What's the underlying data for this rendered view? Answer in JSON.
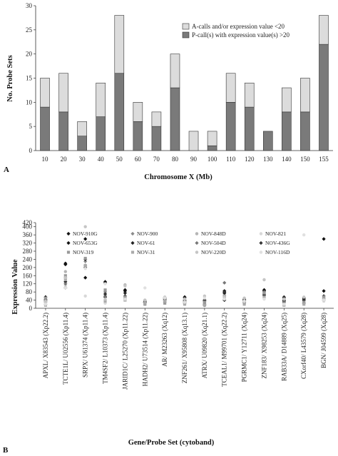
{
  "chart_data": [
    {
      "panel": "A",
      "type": "bar",
      "stacked": true,
      "categories": [
        "10",
        "20",
        "30",
        "40",
        "50",
        "60",
        "70",
        "80",
        "90",
        "100",
        "110",
        "120",
        "130",
        "140",
        "150",
        "155"
      ],
      "series": [
        {
          "name": "P-call(s) with expression value(s) >20",
          "values": [
            9,
            8,
            3,
            7,
            16,
            6,
            5,
            13,
            0,
            1,
            10,
            9,
            4,
            8,
            8,
            22
          ],
          "color": "#7a7a7a"
        },
        {
          "name": "A-calls and/or expression value <20",
          "values": [
            6,
            8,
            3,
            7,
            12,
            4,
            3,
            7,
            4,
            3,
            6,
            5,
            0,
            5,
            7,
            6
          ],
          "color": "#dcdcdc"
        }
      ],
      "xlabel": "Chromosome X (Mb)",
      "ylabel": "No. Probe Sets",
      "ylim": [
        0,
        30
      ],
      "yticks": [
        "0",
        "5",
        "10",
        "15",
        "20",
        "25",
        "30"
      ],
      "legend_position": "top-right",
      "grid": false
    },
    {
      "panel": "B",
      "type": "scatter",
      "categories": [
        "APXL/ X83543 (Xp22.2)",
        "TCTE1L/ U02556 (Xp11.4)",
        "SRPX/ U61374 (Xp11.4)",
        "TM4SF2/ L10373 (Xp11.4)",
        "JARID1C/ L25270 (Xp11.22)",
        "HADH2/ U73514 (Xp11.22)",
        "AR/ M23263 (Xq12)",
        "ZNF261/ X95808 (Xq13.1)",
        "ATRX/ U09820 (Xq21.1)",
        "TCEAL1/ M99701 (Xq22.2)",
        "PGRMC1/ Y12711 (Xq24)",
        "ZNF183/ X98253 (Xq24)",
        "RAB33A/ D14889 (Xq25)",
        "CXorf40/ L43579 (Xq28)",
        "BGN/ J04599 (Xq28)"
      ],
      "series": [
        {
          "name": "NOV-910G",
          "values": [
            55,
            220,
            340,
            125,
            90,
            30,
            50,
            55,
            40,
            85,
            45,
            85,
            50,
            50,
            340
          ],
          "color": "#111111",
          "marker": "diamond"
        },
        {
          "name": "NOV-900",
          "values": [
            30,
            150,
            230,
            80,
            60,
            30,
            35,
            30,
            25,
            60,
            30,
            60,
            30,
            25,
            50
          ],
          "color": "#8a8a8a",
          "marker": "diamond"
        },
        {
          "name": "NOV-848D",
          "values": [
            20,
            180,
            200,
            70,
            115,
            40,
            45,
            35,
            30,
            70,
            25,
            75,
            45,
            35,
            45
          ],
          "color": "#b5b5b5",
          "marker": "circle"
        },
        {
          "name": "NOV-821",
          "values": [
            25,
            110,
            60,
            25,
            50,
            20,
            30,
            20,
            20,
            50,
            20,
            55,
            25,
            20,
            35
          ],
          "color": "#d8d8d8",
          "marker": "circle"
        },
        {
          "name": "NOV-653G",
          "values": [
            45,
            215,
            150,
            130,
            85,
            30,
            50,
            40,
            35,
            75,
            35,
            90,
            40,
            40,
            85
          ],
          "color": "#111111",
          "marker": "diamond"
        },
        {
          "name": "NOV-61",
          "values": [
            35,
            130,
            240,
            55,
            75,
            30,
            40,
            35,
            15,
            40,
            40,
            65,
            35,
            25,
            40
          ],
          "color": "#222222",
          "marker": "diamond"
        },
        {
          "name": "NOV-504D",
          "values": [
            20,
            120,
            210,
            60,
            45,
            25,
            30,
            25,
            20,
            125,
            25,
            80,
            30,
            25,
            50
          ],
          "color": "#777777",
          "marker": "diamond"
        },
        {
          "name": "NOV-436G",
          "values": [
            40,
            100,
            200,
            70,
            60,
            35,
            45,
            50,
            40,
            80,
            40,
            70,
            55,
            45,
            60
          ],
          "color": "#333333",
          "marker": "diamond"
        },
        {
          "name": "NOV-319",
          "values": [
            50,
            160,
            245,
            90,
            55,
            20,
            25,
            30,
            30,
            55,
            30,
            75,
            20,
            30,
            55
          ],
          "color": "#999999",
          "marker": "square"
        },
        {
          "name": "NOV-31",
          "values": [
            15,
            140,
            210,
            35,
            40,
            25,
            35,
            20,
            15,
            60,
            20,
            55,
            15,
            20,
            45
          ],
          "color": "#aaaaaa",
          "marker": "square"
        },
        {
          "name": "NOV-220D",
          "values": [
            35,
            150,
            400,
            45,
            110,
            40,
            55,
            45,
            60,
            55,
            50,
            140,
            45,
            55,
            40
          ],
          "color": "#c5c5c5",
          "marker": "circle"
        },
        {
          "name": "NOV-116D",
          "values": [
            20,
            100,
            195,
            120,
            45,
            100,
            50,
            30,
            50,
            45,
            35,
            45,
            20,
            360,
            40
          ],
          "color": "#e0e0e0",
          "marker": "circle"
        }
      ],
      "xlabel": "Gene/Probe Set (cytoband)",
      "ylabel": "Expression Value",
      "ylim": [
        0,
        420
      ],
      "yticks": [
        "0",
        "40",
        "80",
        "120",
        "160",
        "200",
        "240",
        "280",
        "320",
        "360",
        "400",
        "420"
      ],
      "legend_position": "top",
      "grid": false
    }
  ]
}
